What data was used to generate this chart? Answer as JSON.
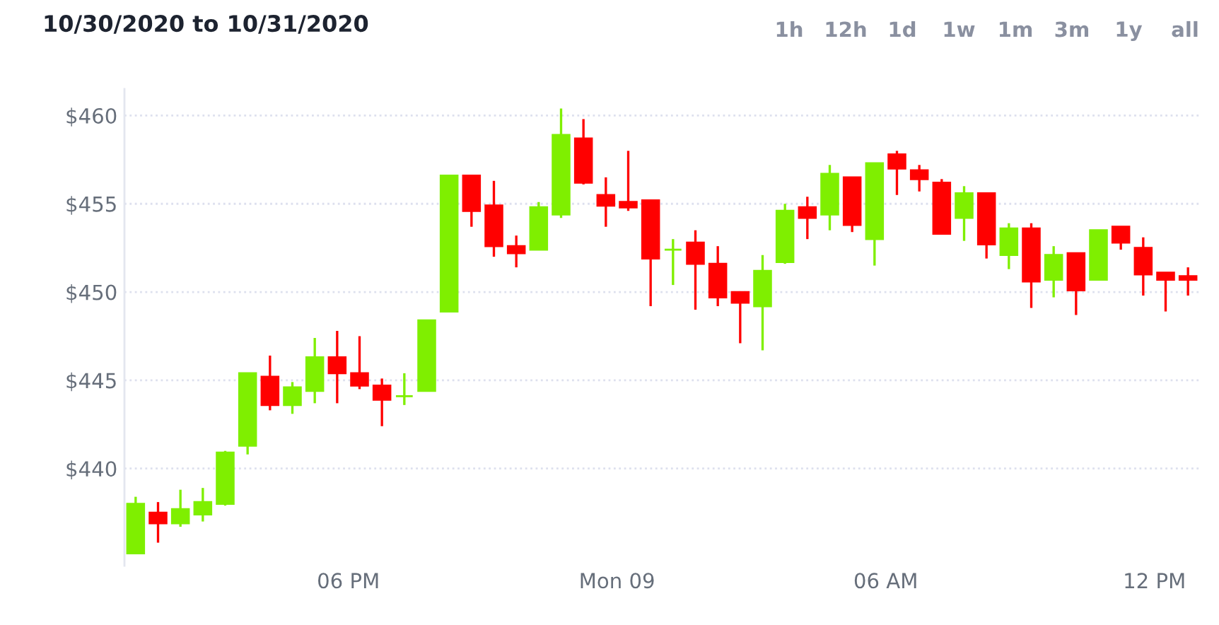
{
  "chart_data": {
    "type": "candlestick",
    "title": "10/30/2020 to 10/31/2020",
    "annotations": [
      "1h",
      "12h",
      "1d",
      "1w",
      "1m",
      "3m",
      "1y",
      "all"
    ],
    "x": [
      "2020-10-30T13:15",
      "2020-10-30T13:45",
      "2020-10-30T14:15",
      "2020-10-30T14:45",
      "2020-10-30T15:15",
      "2020-10-30T15:45",
      "2020-10-30T16:15",
      "2020-10-30T16:45",
      "2020-10-30T17:15",
      "2020-10-30T17:45",
      "2020-10-30T18:15",
      "2020-10-30T18:45",
      "2020-10-30T19:15",
      "2020-10-30T19:45",
      "2020-10-30T20:15",
      "2020-10-30T20:45",
      "2020-10-30T21:15",
      "2020-10-30T21:45",
      "2020-10-30T22:15",
      "2020-10-30T22:45",
      "2020-10-30T23:15",
      "2020-10-30T23:45",
      "2020-10-31T00:15",
      "2020-10-31T00:45",
      "2020-10-31T01:15",
      "2020-10-31T01:45",
      "2020-10-31T02:15",
      "2020-10-31T02:45",
      "2020-10-31T03:15",
      "2020-10-31T03:45",
      "2020-10-31T04:15",
      "2020-10-31T04:45",
      "2020-10-31T05:15",
      "2020-10-31T05:45",
      "2020-10-31T06:15",
      "2020-10-31T06:45",
      "2020-10-31T07:15",
      "2020-10-31T07:45",
      "2020-10-31T08:15",
      "2020-10-31T08:45",
      "2020-10-31T09:15",
      "2020-10-31T09:45",
      "2020-10-31T10:15",
      "2020-10-31T10:45",
      "2020-10-31T11:15",
      "2020-10-31T11:45",
      "2020-10-31T12:15",
      "2020-10-31T12:45"
    ],
    "ohlc": [
      [
        435.2,
        438.4,
        435.2,
        438.0
      ],
      [
        437.5,
        438.1,
        435.8,
        436.9
      ],
      [
        436.9,
        438.8,
        436.7,
        437.7
      ],
      [
        437.4,
        438.9,
        437.0,
        438.1
      ],
      [
        438.0,
        441.0,
        437.9,
        440.9
      ],
      [
        441.3,
        445.4,
        440.8,
        445.4
      ],
      [
        445.2,
        446.4,
        443.3,
        443.6
      ],
      [
        443.6,
        444.9,
        443.1,
        444.6
      ],
      [
        444.4,
        447.4,
        443.7,
        446.3
      ],
      [
        446.3,
        447.8,
        443.7,
        445.4
      ],
      [
        445.4,
        447.5,
        444.5,
        444.7
      ],
      [
        444.7,
        445.1,
        442.4,
        443.9
      ],
      [
        444.1,
        445.4,
        443.6,
        444.1
      ],
      [
        444.4,
        448.4,
        444.4,
        448.4
      ],
      [
        448.9,
        456.6,
        448.9,
        456.6
      ],
      [
        456.6,
        456.6,
        453.7,
        454.6
      ],
      [
        454.9,
        456.3,
        452.0,
        452.6
      ],
      [
        452.6,
        453.2,
        451.4,
        452.2
      ],
      [
        452.4,
        455.1,
        452.4,
        454.8
      ],
      [
        454.4,
        460.4,
        454.2,
        458.9
      ],
      [
        458.7,
        459.8,
        456.1,
        456.2
      ],
      [
        455.5,
        456.5,
        453.7,
        454.9
      ],
      [
        455.1,
        458.0,
        454.6,
        454.8
      ],
      [
        455.2,
        455.2,
        449.2,
        451.9
      ],
      [
        452.4,
        453.0,
        450.4,
        452.4
      ],
      [
        452.8,
        453.5,
        449.0,
        451.6
      ],
      [
        451.6,
        452.6,
        449.2,
        449.7
      ],
      [
        450.0,
        450.0,
        447.1,
        449.4
      ],
      [
        449.2,
        452.1,
        446.7,
        451.2
      ],
      [
        451.7,
        455.0,
        451.6,
        454.6
      ],
      [
        454.8,
        455.4,
        453.0,
        454.2
      ],
      [
        454.4,
        457.2,
        453.5,
        456.7
      ],
      [
        456.5,
        456.5,
        453.4,
        453.8
      ],
      [
        453.0,
        457.3,
        451.5,
        457.3
      ],
      [
        457.8,
        458.0,
        455.5,
        457.0
      ],
      [
        456.9,
        457.2,
        455.7,
        456.4
      ],
      [
        456.2,
        456.4,
        453.3,
        453.3
      ],
      [
        454.2,
        456.0,
        452.9,
        455.6
      ],
      [
        455.6,
        455.6,
        451.9,
        452.7
      ],
      [
        452.1,
        453.9,
        451.3,
        453.6
      ],
      [
        453.6,
        453.9,
        449.1,
        450.6
      ],
      [
        450.7,
        452.6,
        449.7,
        452.1
      ],
      [
        452.2,
        452.2,
        448.7,
        450.1
      ],
      [
        450.7,
        453.5,
        450.7,
        453.5
      ],
      [
        453.7,
        453.7,
        452.4,
        452.8
      ],
      [
        452.5,
        453.1,
        449.8,
        451.0
      ],
      [
        451.1,
        451.1,
        448.9,
        450.7
      ],
      [
        450.9,
        451.4,
        449.8,
        450.7
      ]
    ],
    "colors": [
      "#7fef00",
      "#ff0000",
      "#7fef00",
      "#7fef00",
      "#7fef00",
      "#7fef00",
      "#ff0000",
      "#7fef00",
      "#7fef00",
      "#ff0000",
      "#ff0000",
      "#ff0000",
      "#7fef00",
      "#7fef00",
      "#7fef00",
      "#ff0000",
      "#ff0000",
      "#ff0000",
      "#7fef00",
      "#7fef00",
      "#ff0000",
      "#ff0000",
      "#ff0000",
      "#ff0000",
      "#7fef00",
      "#ff0000",
      "#ff0000",
      "#ff0000",
      "#7fef00",
      "#7fef00",
      "#ff0000",
      "#7fef00",
      "#ff0000",
      "#7fef00",
      "#ff0000",
      "#ff0000",
      "#ff0000",
      "#7fef00",
      "#ff0000",
      "#7fef00",
      "#ff0000",
      "#7fef00",
      "#ff0000",
      "#7fef00",
      "#ff0000",
      "#ff0000",
      "#ff0000",
      "#ff0000"
    ],
    "xlim": [
      "2020-10-30T13:00",
      "2020-10-31T13:00"
    ],
    "ylim": [
      434.5,
      461.5
    ],
    "xticks": [
      {
        "value": "2020-10-30T18:00",
        "label": "06 PM"
      },
      {
        "value": "2020-10-31T00:00",
        "label": "Mon 09"
      },
      {
        "value": "2020-10-31T06:00",
        "label": "06 AM"
      },
      {
        "value": "2020-10-31T12:00",
        "label": "12 PM"
      }
    ],
    "yticks": [
      {
        "value": 440,
        "label": "$440"
      },
      {
        "value": 445,
        "label": "$445"
      },
      {
        "value": 450,
        "label": "$450"
      },
      {
        "value": 455,
        "label": "$455"
      },
      {
        "value": 460,
        "label": "$460"
      }
    ],
    "grid": "y"
  }
}
